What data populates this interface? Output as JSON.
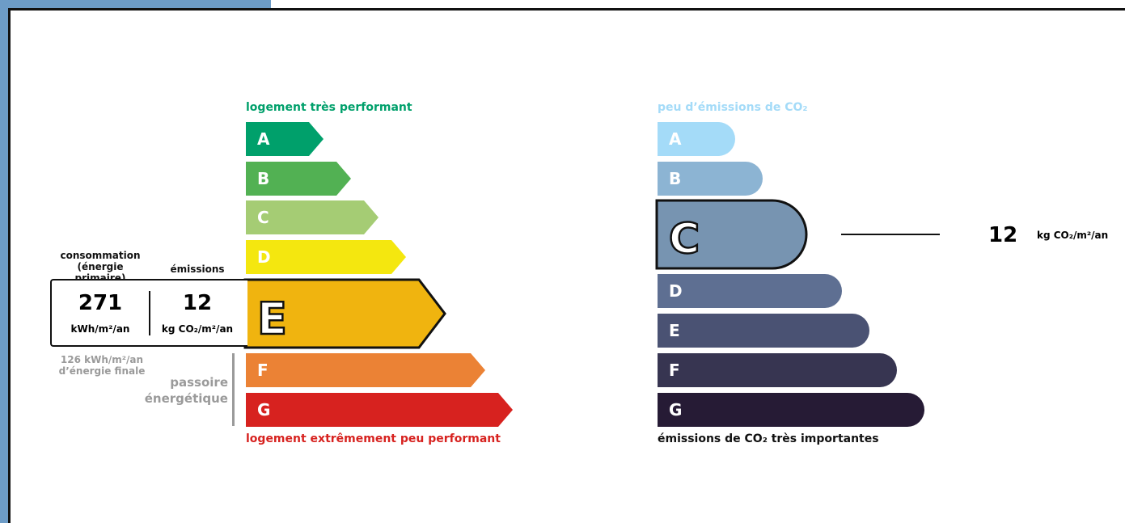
{
  "energy": {
    "top_label": "logement très performant",
    "bottom_label": "logement extrêmement peu performant",
    "classes": [
      {
        "letter": "A",
        "color": "#00a06b"
      },
      {
        "letter": "B",
        "color": "#52b153"
      },
      {
        "letter": "C",
        "color": "#a5cc74"
      },
      {
        "letter": "D",
        "color": "#f4e70f"
      },
      {
        "letter": "E",
        "color": "#f0b40f"
      },
      {
        "letter": "F",
        "color": "#eb8235"
      },
      {
        "letter": "G",
        "color": "#d7221f"
      }
    ],
    "selected": "E",
    "box": {
      "consumption_header_1": "consommation",
      "consumption_header_2": "(énergie primaire)",
      "emissions_header": "émissions",
      "consumption_value": "271",
      "consumption_unit": "kWh/m²/an",
      "emissions_value": "12",
      "emissions_unit": "kg CO₂/m²/an"
    },
    "final_energy_1": "126 kWh/m²/an",
    "final_energy_2": "d’énergie finale",
    "passoire_1": "passoire",
    "passoire_2": "énergétique"
  },
  "ges": {
    "top_label": "peu d’émissions de CO₂",
    "bottom_label": "émissions de CO₂ très importantes",
    "classes": [
      {
        "letter": "A",
        "color": "#a4dbf8"
      },
      {
        "letter": "B",
        "color": "#8cb4d3"
      },
      {
        "letter": "C",
        "color": "#7794b1"
      },
      {
        "letter": "D",
        "color": "#5e6f92"
      },
      {
        "letter": "E",
        "color": "#4a5273"
      },
      {
        "letter": "F",
        "color": "#373551"
      },
      {
        "letter": "G",
        "color": "#261b35"
      }
    ],
    "selected": "C",
    "value": "12",
    "unit": "kg CO₂/m²/an"
  }
}
